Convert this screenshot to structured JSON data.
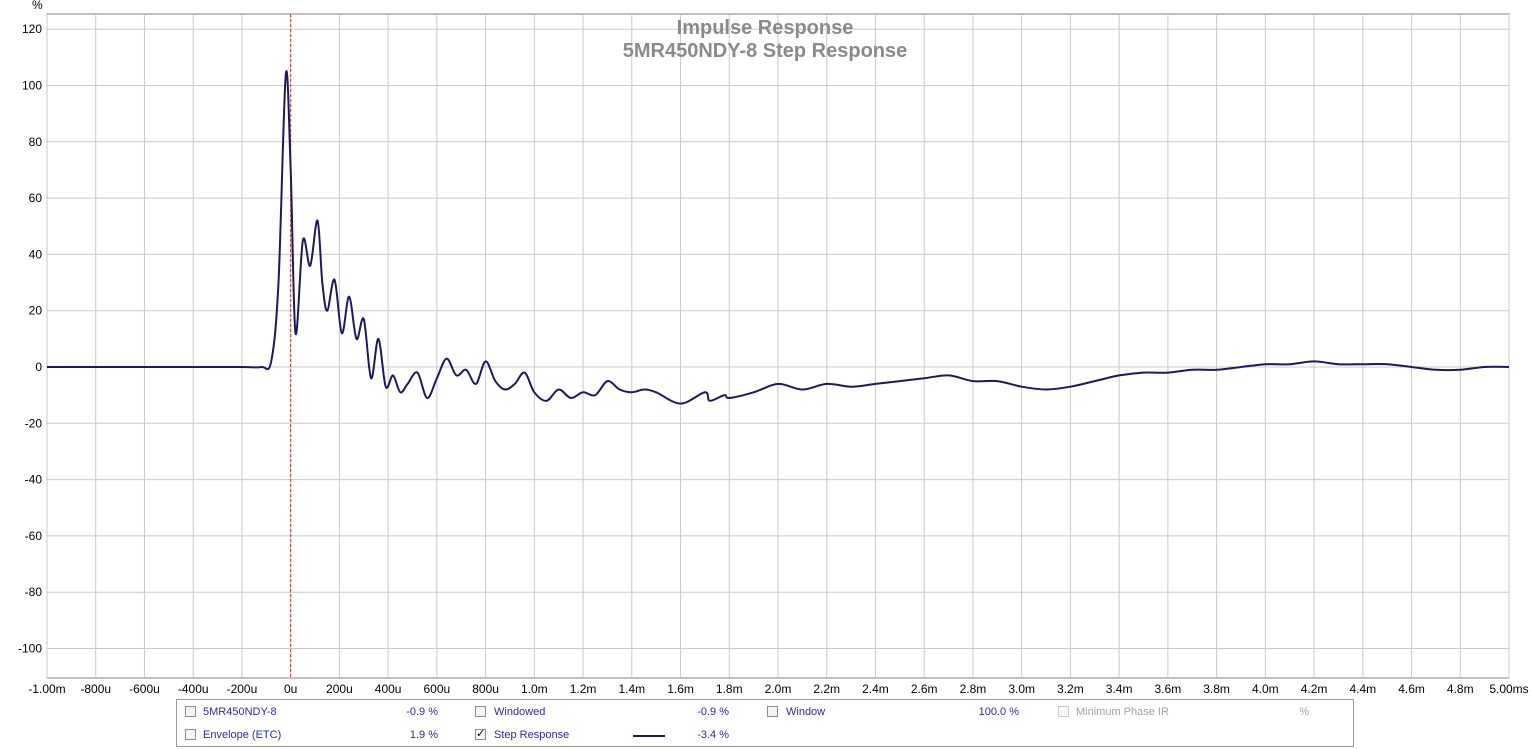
{
  "chart_data": {
    "type": "line",
    "title": "Impulse Response",
    "subtitle": "5MR450NDY-8 Step Response",
    "ylabel": "%",
    "xlim": [
      -0.001,
      0.005
    ],
    "ylim": [
      -110,
      125
    ],
    "x_ticks": [
      -0.001,
      -0.0008,
      -0.0006,
      -0.0004,
      -0.0002,
      0,
      0.0002,
      0.0004,
      0.0006,
      0.0008,
      0.001,
      0.0012,
      0.0014,
      0.0016,
      0.0018,
      0.002,
      0.0022,
      0.0024,
      0.0026,
      0.0028,
      0.003,
      0.0032,
      0.0034,
      0.0036,
      0.0038,
      0.004,
      0.0042,
      0.0044,
      0.0046,
      0.0048,
      0.005
    ],
    "x_tick_labels": [
      "-1.00m",
      "-800u",
      "-600u",
      "-400u",
      "-200u",
      "0u",
      "200u",
      "400u",
      "600u",
      "800u",
      "1.0m",
      "1.2m",
      "1.4m",
      "1.6m",
      "1.8m",
      "2.0m",
      "2.2m",
      "2.4m",
      "2.6m",
      "2.8m",
      "3.0m",
      "3.2m",
      "3.4m",
      "3.6m",
      "3.8m",
      "4.0m",
      "4.2m",
      "4.4m",
      "4.6m",
      "4.8m",
      "5.00ms"
    ],
    "y_ticks": [
      120,
      100,
      80,
      60,
      40,
      20,
      0,
      -20,
      -40,
      -60,
      -80,
      -100
    ],
    "y_tick_labels": [
      "120",
      "100",
      "80",
      "60",
      "40",
      "20",
      "0",
      "-20",
      "-40",
      "-60",
      "-80",
      "-100"
    ],
    "grid": true,
    "cursor_x": 0,
    "colors": {
      "series": "#1a1a5e",
      "cursor": "#c0392b",
      "grid": "#c8c8c8",
      "title": "#8a8a8a"
    },
    "series": [
      {
        "name": "Step Response",
        "x": [
          -0.001,
          -0.0008,
          -0.0006,
          -0.0004,
          -0.0002,
          -0.00012,
          -8e-05,
          -5e-05,
          -2e-05,
          0,
          2e-05,
          5e-05,
          8e-05,
          0.00011,
          0.00013,
          0.00015,
          0.00018,
          0.00021,
          0.00024,
          0.00027,
          0.0003,
          0.00033,
          0.00036,
          0.00039,
          0.00042,
          0.00045,
          0.00048,
          0.00052,
          0.00056,
          0.0006,
          0.00064,
          0.00068,
          0.00072,
          0.00076,
          0.0008,
          0.00084,
          0.00088,
          0.00092,
          0.00096,
          0.001,
          0.00105,
          0.0011,
          0.00115,
          0.0012,
          0.00125,
          0.0013,
          0.00135,
          0.0014,
          0.00145,
          0.0015,
          0.0016,
          0.0017,
          0.00172,
          0.00178,
          0.0018,
          0.0019,
          0.002,
          0.0021,
          0.0022,
          0.0023,
          0.0024,
          0.0025,
          0.0026,
          0.0027,
          0.0028,
          0.0029,
          0.003,
          0.0031,
          0.0032,
          0.0033,
          0.0034,
          0.0035,
          0.0036,
          0.0037,
          0.0038,
          0.0039,
          0.004,
          0.0041,
          0.0042,
          0.0043,
          0.0044,
          0.0045,
          0.0046,
          0.0047,
          0.0048,
          0.0049,
          0.005
        ],
        "y": [
          0,
          0,
          0,
          0,
          0,
          0,
          2,
          30,
          104,
          70,
          12,
          45,
          36,
          52,
          30,
          20,
          31,
          12,
          25,
          10,
          17,
          -4,
          10,
          -7,
          -3,
          -9,
          -6,
          -2,
          -11,
          -4,
          3,
          -3,
          -1,
          -6,
          2,
          -5,
          -8,
          -6,
          -2,
          -9,
          -12,
          -8,
          -11,
          -9,
          -10,
          -5,
          -8,
          -9,
          -8,
          -9,
          -13,
          -9,
          -12,
          -10,
          -11,
          -9,
          -6,
          -8,
          -6,
          -7,
          -6,
          -5,
          -4,
          -3,
          -5,
          -5,
          -7,
          -8,
          -7,
          -5,
          -3,
          -2,
          -2,
          -1,
          -1,
          0,
          1,
          1,
          2,
          1,
          1,
          1,
          0,
          -1,
          -1,
          0,
          0
        ]
      }
    ]
  },
  "legend": {
    "items": [
      {
        "label": "5MR450NDY-8",
        "value": "-0.9 %",
        "checked": false,
        "enabled": true,
        "label_color": "#2a2aa0"
      },
      {
        "label": "Windowed",
        "value": "-0.9 %",
        "checked": false,
        "enabled": true,
        "label_color": "#2a2aa0"
      },
      {
        "label": "Window",
        "value": "100.0 %",
        "checked": false,
        "enabled": true,
        "label_color": "#2a2aa0"
      },
      {
        "label": "Minimum Phase IR",
        "value": "%",
        "checked": false,
        "enabled": false,
        "label_color": "#a0a0a0"
      },
      {
        "label": "Envelope (ETC)",
        "value": "1.9 %",
        "checked": false,
        "enabled": true,
        "label_color": "#2a2aa0"
      },
      {
        "label": "Step Response",
        "value": "-3.4 %",
        "checked": true,
        "enabled": true,
        "label_color": "#2a2aa0"
      }
    ]
  }
}
